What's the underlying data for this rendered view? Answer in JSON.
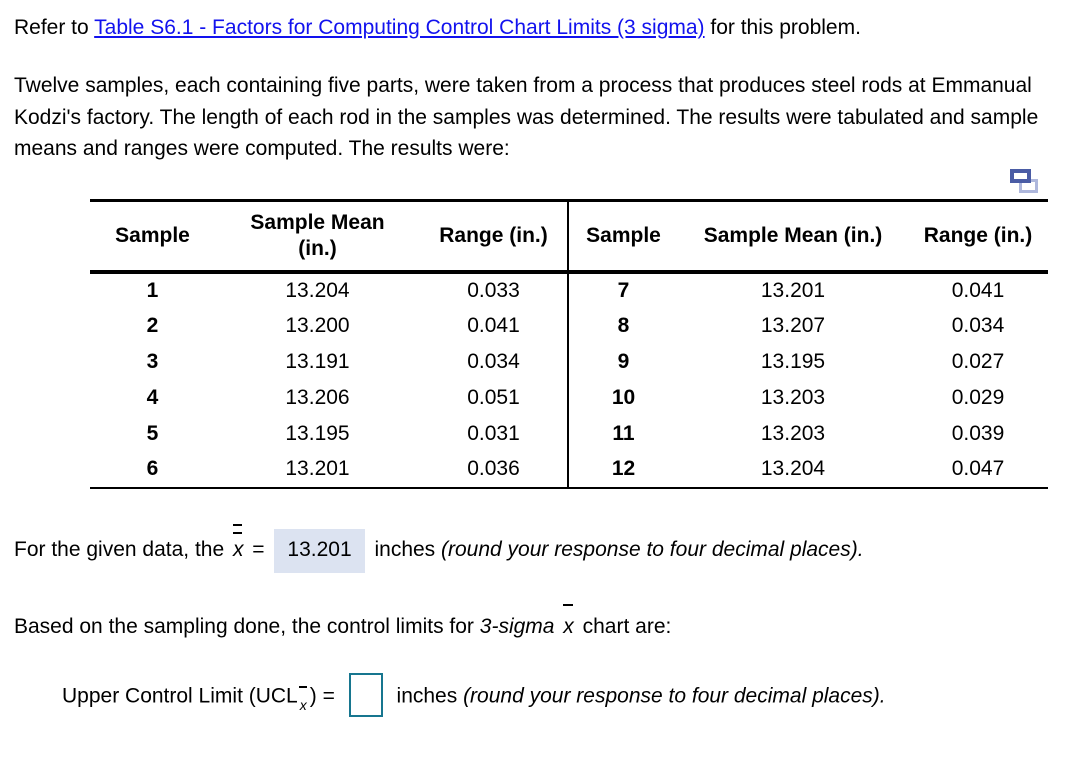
{
  "intro": {
    "prefix": "Refer to ",
    "link_text": "Table S6.1 - Factors for Computing Control Chart Limits (3 sigma)",
    "suffix": " for this problem."
  },
  "problem_statement": "Twelve samples, each containing five parts, were taken from a process that produces steel rods at Emmanual Kodzi's factory. The length of each rod in the samples was determined. The results were tabulated and sample means and ranges were computed. The results were:",
  "icons": {
    "copy_table": "copy-table (two overlapping rectangles)"
  },
  "table": {
    "headers": [
      "Sample",
      "Sample Mean (in.)",
      "Range (in.)",
      "Sample",
      "Sample Mean (in.)",
      "Range (in.)"
    ],
    "rows": [
      [
        "1",
        "13.204",
        "0.033",
        "7",
        "13.201",
        "0.041"
      ],
      [
        "2",
        "13.200",
        "0.041",
        "8",
        "13.207",
        "0.034"
      ],
      [
        "3",
        "13.191",
        "0.034",
        "9",
        "13.195",
        "0.027"
      ],
      [
        "4",
        "13.206",
        "0.051",
        "10",
        "13.203",
        "0.029"
      ],
      [
        "5",
        "13.195",
        "0.031",
        "11",
        "13.203",
        "0.039"
      ],
      [
        "6",
        "13.201",
        "0.036",
        "12",
        "13.204",
        "0.047"
      ]
    ]
  },
  "xbar_line": {
    "prefix": "For the given data, the ",
    "x_double_bar_symbol": "x",
    "equals": " = ",
    "value": "13.201",
    "unit": " inches ",
    "note": "(round your response to four decimal places)."
  },
  "limits_line": {
    "prefix": "Based on the sampling done, the control limits for ",
    "sigma_italic": "3-sigma ",
    "x_bar_symbol": "x",
    "suffix": " chart are:"
  },
  "ucl_line": {
    "label_prefix": "Upper Control Limit (UCL",
    "subscript_x_symbol": "x",
    "label_suffix": ") = ",
    "answer_value": "",
    "unit": " inches ",
    "note": "(round your response to four decimal places)."
  },
  "colors": {
    "link_blue": "#1212ee",
    "answer_highlight_bg": "#dce3f1",
    "answer_box_border": "#17768f",
    "copy_icon_front": "#4a5ca5",
    "copy_icon_back": "#aeb7dc"
  }
}
